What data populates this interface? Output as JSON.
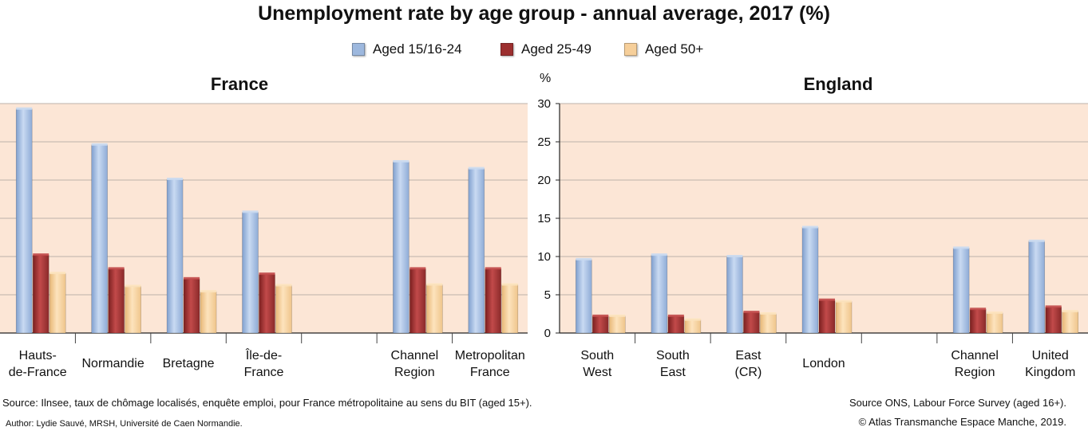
{
  "title": "Unemployment rate by age group - annual average, 2017 (%)",
  "unit_label": "%",
  "legend": [
    {
      "label": "Aged 15/16-24",
      "color": "#9db8de"
    },
    {
      "label": "Aged 25-49",
      "color": "#9c2f2f"
    },
    {
      "label": "Aged 50+",
      "color": "#f6cf9a"
    }
  ],
  "panels": {
    "france_title": "France",
    "england_title": "England"
  },
  "chart_data": [
    {
      "type": "bar",
      "title": "France",
      "ylabel": "%",
      "ylim": [
        0,
        30
      ],
      "yticks": [
        0,
        5,
        10,
        15,
        20,
        25,
        30
      ],
      "categories": [
        "Hauts-\nde-France",
        "Normandie",
        "Bretagne",
        "Île-de-\nFrance",
        "",
        "Channel\nRegion",
        "Metropolitan\nFrance"
      ],
      "series": [
        {
          "name": "Aged 15/16-24",
          "values": [
            29.3,
            24.6,
            20.1,
            15.8,
            null,
            22.4,
            21.5
          ]
        },
        {
          "name": "Aged 25-49",
          "values": [
            10.2,
            8.4,
            7.1,
            7.7,
            null,
            8.4,
            8.4
          ]
        },
        {
          "name": "Aged 50+",
          "values": [
            7.8,
            6.1,
            5.4,
            6.2,
            null,
            6.3,
            6.3
          ]
        }
      ],
      "grid": true
    },
    {
      "type": "bar",
      "title": "England",
      "ylabel": "%",
      "ylim": [
        0,
        30
      ],
      "yticks": [
        0,
        5,
        10,
        15,
        20,
        25,
        30
      ],
      "categories": [
        "South\nWest",
        "South\nEast",
        "East\n(CR)",
        "London",
        "",
        "Channel\nRegion",
        "United\nKingdom"
      ],
      "series": [
        {
          "name": "Aged 15/16-24",
          "values": [
            9.6,
            10.2,
            10.0,
            13.8,
            null,
            11.1,
            12.0
          ]
        },
        {
          "name": "Aged 25-49",
          "values": [
            2.2,
            2.2,
            2.7,
            4.3,
            null,
            3.1,
            3.4
          ]
        },
        {
          "name": "Aged 50+",
          "values": [
            2.2,
            1.7,
            2.5,
            4.1,
            null,
            2.6,
            2.8
          ]
        }
      ],
      "grid": true
    }
  ],
  "footer": {
    "source_france": "Source: Ilnsee, taux de chômage localisés, enquête emploi, pour France métropolitaine au sens du BIT (aged 15+).",
    "author": "Author: Lydie Sauvé, MRSH, Université de Caen Normandie.",
    "source_england": "Source ONS, Labour Force Survey (aged 16+).",
    "copyright": "© Atlas Transmanche Espace Manche, 2019."
  }
}
